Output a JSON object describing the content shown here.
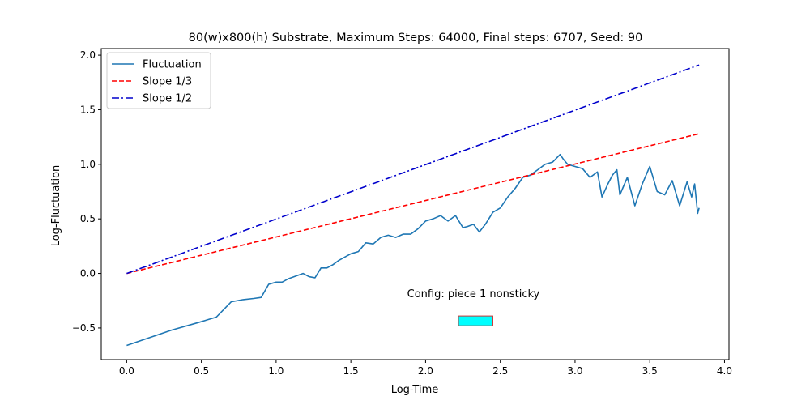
{
  "chart_data": {
    "type": "line",
    "title": "80(w)x800(h) Substrate, Maximum Steps: 64000, Final steps: 6707, Seed: 90",
    "xlabel": "Log-Time",
    "ylabel": "Log-Fluctuation",
    "xlim": [
      -0.17,
      4.03
    ],
    "ylim": [
      -0.79,
      2.06
    ],
    "xticks": [
      "0.0",
      "0.5",
      "1.0",
      "1.5",
      "2.0",
      "2.5",
      "3.0",
      "3.5",
      "4.0"
    ],
    "yticks": [
      "−0.5",
      "0.0",
      "0.5",
      "1.0",
      "1.5",
      "2.0"
    ],
    "grid": false,
    "legend_position": "top-left",
    "series": [
      {
        "name": "Fluctuation",
        "color": "#1f77b4",
        "style": "solid",
        "x": [
          0.0,
          0.3,
          0.48,
          0.6,
          0.7,
          0.78,
          0.85,
          0.9,
          0.95,
          1.0,
          1.04,
          1.08,
          1.12,
          1.18,
          1.22,
          1.26,
          1.3,
          1.34,
          1.38,
          1.42,
          1.46,
          1.5,
          1.55,
          1.6,
          1.65,
          1.7,
          1.75,
          1.8,
          1.85,
          1.9,
          1.95,
          2.0,
          2.05,
          2.1,
          2.15,
          2.2,
          2.25,
          2.28,
          2.32,
          2.36,
          2.4,
          2.45,
          2.5,
          2.55,
          2.6,
          2.65,
          2.7,
          2.75,
          2.8,
          2.85,
          2.9,
          2.92,
          2.95,
          3.0,
          3.05,
          3.1,
          3.15,
          3.18,
          3.22,
          3.25,
          3.28,
          3.3,
          3.35,
          3.4,
          3.45,
          3.5,
          3.55,
          3.6,
          3.65,
          3.7,
          3.75,
          3.78,
          3.8,
          3.82,
          3.83
        ],
        "y": [
          -0.66,
          -0.52,
          -0.45,
          -0.4,
          -0.26,
          -0.24,
          -0.23,
          -0.22,
          -0.1,
          -0.08,
          -0.08,
          -0.05,
          -0.03,
          0.0,
          -0.03,
          -0.04,
          0.05,
          0.05,
          0.08,
          0.12,
          0.15,
          0.18,
          0.2,
          0.28,
          0.27,
          0.33,
          0.35,
          0.33,
          0.36,
          0.36,
          0.41,
          0.48,
          0.5,
          0.53,
          0.48,
          0.53,
          0.42,
          0.43,
          0.45,
          0.38,
          0.45,
          0.56,
          0.6,
          0.7,
          0.78,
          0.88,
          0.9,
          0.95,
          1.0,
          1.02,
          1.09,
          1.05,
          1.0,
          0.98,
          0.96,
          0.88,
          0.93,
          0.7,
          0.82,
          0.9,
          0.95,
          0.72,
          0.88,
          0.62,
          0.82,
          0.98,
          0.75,
          0.72,
          0.85,
          0.62,
          0.84,
          0.7,
          0.82,
          0.55,
          0.6
        ]
      },
      {
        "name": "Slope 1/3",
        "color": "#ff0000",
        "style": "dashed",
        "x": [
          0.0,
          3.83
        ],
        "y": [
          0.0,
          1.28
        ]
      },
      {
        "name": "Slope 1/2",
        "color": "#0000cc",
        "style": "dashdot",
        "x": [
          0.0,
          3.83
        ],
        "y": [
          0.0,
          1.91
        ]
      }
    ],
    "annotation": {
      "text": "Config:  piece 1 nonsticky",
      "x": 2.32,
      "y": -0.22,
      "box": {
        "x0": 2.22,
        "x1": 2.45,
        "y0": -0.48,
        "y1": -0.39,
        "fill": "#00ffff",
        "edge": "#cc3333"
      }
    }
  }
}
